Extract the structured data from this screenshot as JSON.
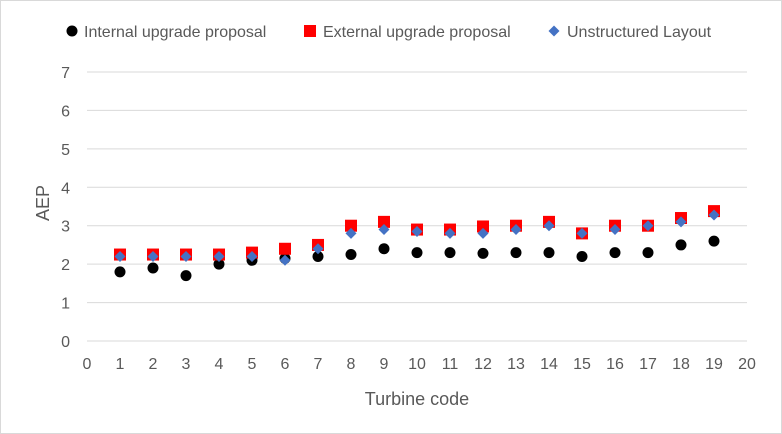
{
  "chart_data": {
    "type": "scatter",
    "title": "",
    "xlabel": "Turbine code",
    "ylabel": "AEP",
    "xlim": [
      0,
      20
    ],
    "ylim": [
      0,
      7
    ],
    "x_ticks": [
      "0",
      "1",
      "2",
      "3",
      "4",
      "5",
      "6",
      "7",
      "8",
      "9",
      "10",
      "11",
      "12",
      "13",
      "14",
      "15",
      "16",
      "17",
      "18",
      "19",
      "20"
    ],
    "y_ticks": [
      "0",
      "1",
      "2",
      "3",
      "4",
      "5",
      "6",
      "7"
    ],
    "grid": true,
    "legend_position": "top",
    "series": [
      {
        "name": "Internal upgrade proposal",
        "marker": "circle",
        "color": "#000000",
        "points": [
          [
            1,
            1.8
          ],
          [
            2,
            1.9
          ],
          [
            3,
            1.7
          ],
          [
            4,
            2.0
          ],
          [
            5,
            2.1
          ],
          [
            6,
            2.15
          ],
          [
            7,
            2.2
          ],
          [
            8,
            2.25
          ],
          [
            9,
            2.4
          ],
          [
            10,
            2.3
          ],
          [
            11,
            2.3
          ],
          [
            12,
            2.28
          ],
          [
            13,
            2.3
          ],
          [
            14,
            2.3
          ],
          [
            15,
            2.2
          ],
          [
            16,
            2.3
          ],
          [
            17,
            2.3
          ],
          [
            18,
            2.5
          ],
          [
            19,
            2.6
          ]
        ]
      },
      {
        "name": "External upgrade proposal",
        "marker": "square",
        "color": "#ff0000",
        "points": [
          [
            1,
            2.25
          ],
          [
            2,
            2.25
          ],
          [
            3,
            2.25
          ],
          [
            4,
            2.25
          ],
          [
            5,
            2.3
          ],
          [
            6,
            2.4
          ],
          [
            7,
            2.5
          ],
          [
            8,
            3.0
          ],
          [
            9,
            3.1
          ],
          [
            10,
            2.9
          ],
          [
            11,
            2.9
          ],
          [
            12,
            2.98
          ],
          [
            13,
            3.0
          ],
          [
            14,
            3.1
          ],
          [
            15,
            2.8
          ],
          [
            16,
            3.0
          ],
          [
            17,
            3.0
          ],
          [
            18,
            3.2
          ],
          [
            19,
            3.38
          ]
        ]
      },
      {
        "name": "Unstructured Layout",
        "marker": "diamond",
        "color": "#4472c4",
        "points": [
          [
            1,
            2.2
          ],
          [
            2,
            2.2
          ],
          [
            3,
            2.2
          ],
          [
            4,
            2.2
          ],
          [
            5,
            2.2
          ],
          [
            6,
            2.1
          ],
          [
            7,
            2.4
          ],
          [
            8,
            2.8
          ],
          [
            9,
            2.9
          ],
          [
            10,
            2.85
          ],
          [
            11,
            2.8
          ],
          [
            12,
            2.8
          ],
          [
            13,
            2.9
          ],
          [
            14,
            3.0
          ],
          [
            15,
            2.8
          ],
          [
            16,
            2.9
          ],
          [
            17,
            3.0
          ],
          [
            18,
            3.1
          ],
          [
            19,
            3.28
          ]
        ]
      }
    ]
  }
}
